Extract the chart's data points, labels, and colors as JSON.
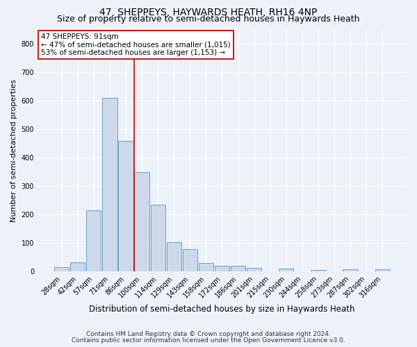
{
  "title": "47, SHEPPEYS, HAYWARDS HEATH, RH16 4NP",
  "subtitle": "Size of property relative to semi-detached houses in Haywards Heath",
  "xlabel": "Distribution of semi-detached houses by size in Haywards Heath",
  "ylabel": "Number of semi-detached properties",
  "bar_color": "#cdd9ea",
  "bar_edge_color": "#6a9fc8",
  "categories": [
    "28sqm",
    "42sqm",
    "57sqm",
    "71sqm",
    "86sqm",
    "100sqm",
    "114sqm",
    "129sqm",
    "143sqm",
    "158sqm",
    "172sqm",
    "186sqm",
    "201sqm",
    "215sqm",
    "230sqm",
    "244sqm",
    "258sqm",
    "273sqm",
    "287sqm",
    "302sqm",
    "316sqm"
  ],
  "values": [
    15,
    33,
    215,
    610,
    460,
    350,
    235,
    103,
    78,
    30,
    20,
    20,
    12,
    0,
    10,
    0,
    6,
    0,
    8,
    0,
    8
  ],
  "ylim": [
    0,
    850
  ],
  "yticks": [
    0,
    100,
    200,
    300,
    400,
    500,
    600,
    700,
    800
  ],
  "redline_x": 4.5,
  "annotation_title": "47 SHEPPEYS: 91sqm",
  "annotation_line1": "← 47% of semi-detached houses are smaller (1,015)",
  "annotation_line2": "53% of semi-detached houses are larger (1,153) →",
  "footnote1": "Contains HM Land Registry data © Crown copyright and database right 2024.",
  "footnote2": "Contains public sector information licensed under the Open Government Licence v3.0.",
  "bg_color": "#edf2f9",
  "grid_color": "#ffffff",
  "annotation_box_color": "#ffffff",
  "annotation_box_edge": "#cc0000",
  "redline_color": "#cc0000",
  "title_fontsize": 10,
  "subtitle_fontsize": 9,
  "ylabel_fontsize": 8,
  "xlabel_fontsize": 8.5,
  "tick_fontsize": 7,
  "annotation_fontsize": 7.5,
  "footnote_fontsize": 6.5
}
